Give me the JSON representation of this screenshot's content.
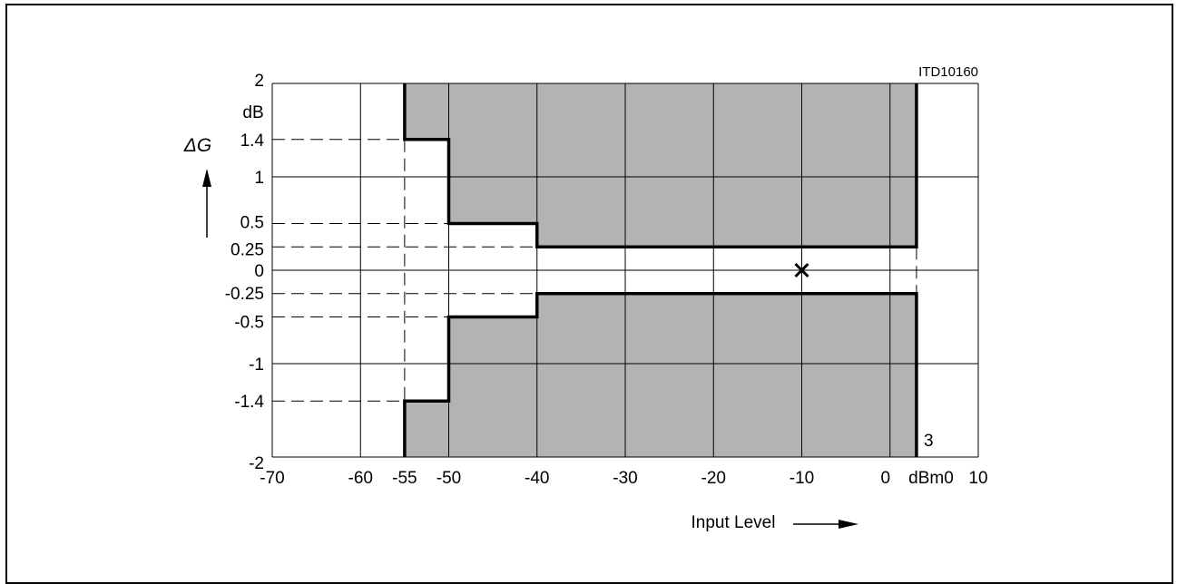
{
  "chart_data": {
    "type": "area",
    "figure_id": "ITD10160",
    "ylabel": "ΔG",
    "y_unit": "dB",
    "xlabel": "Input Level",
    "x_unit": "dBm0",
    "x_ticks": [
      -70,
      -60,
      -55,
      -50,
      -40,
      -30,
      -20,
      -10,
      0,
      10
    ],
    "x_tick_labels": [
      "-70",
      "-60",
      "-55",
      "-50",
      "-40",
      "-30",
      "-20",
      "-10",
      "0",
      "10"
    ],
    "y_ticks": [
      2,
      1.4,
      1,
      0.5,
      0.25,
      0,
      -0.25,
      -0.5,
      -1,
      -1.4,
      -2
    ],
    "y_tick_labels": [
      "2",
      "1.4",
      "1",
      "0.5",
      "0.25",
      "0",
      "-0.25",
      "-0.5",
      "-1",
      "-1.4",
      "-2"
    ],
    "xlim": [
      -70,
      10
    ],
    "ylim": [
      -2,
      2
    ],
    "x_gridlines": [
      -70,
      -60,
      -50,
      -40,
      -30,
      -20,
      -10,
      0,
      10
    ],
    "y_gridlines": [
      2,
      1,
      0,
      -1,
      -2
    ],
    "grid": true,
    "upper_limit": {
      "x": [
        -55,
        -55,
        -50,
        -50,
        -40,
        -40,
        3,
        3
      ],
      "y": [
        2,
        1.4,
        1.4,
        0.5,
        0.5,
        0.25,
        0.25,
        2
      ]
    },
    "lower_limit": {
      "x": [
        -55,
        -55,
        -50,
        -50,
        -40,
        -40,
        3,
        3
      ],
      "y": [
        -2,
        -1.4,
        -1.4,
        -0.5,
        -0.5,
        -0.25,
        -0.25,
        -2
      ]
    },
    "end_marker_label": "3",
    "marker": {
      "x": -10,
      "y": 0,
      "symbol": "×"
    },
    "dashed_guides_y": [
      1.4,
      0.5,
      0.25,
      -0.25,
      -0.5,
      -1.4
    ],
    "fill_color": "#b3b3b3",
    "line_color": "#000000"
  }
}
